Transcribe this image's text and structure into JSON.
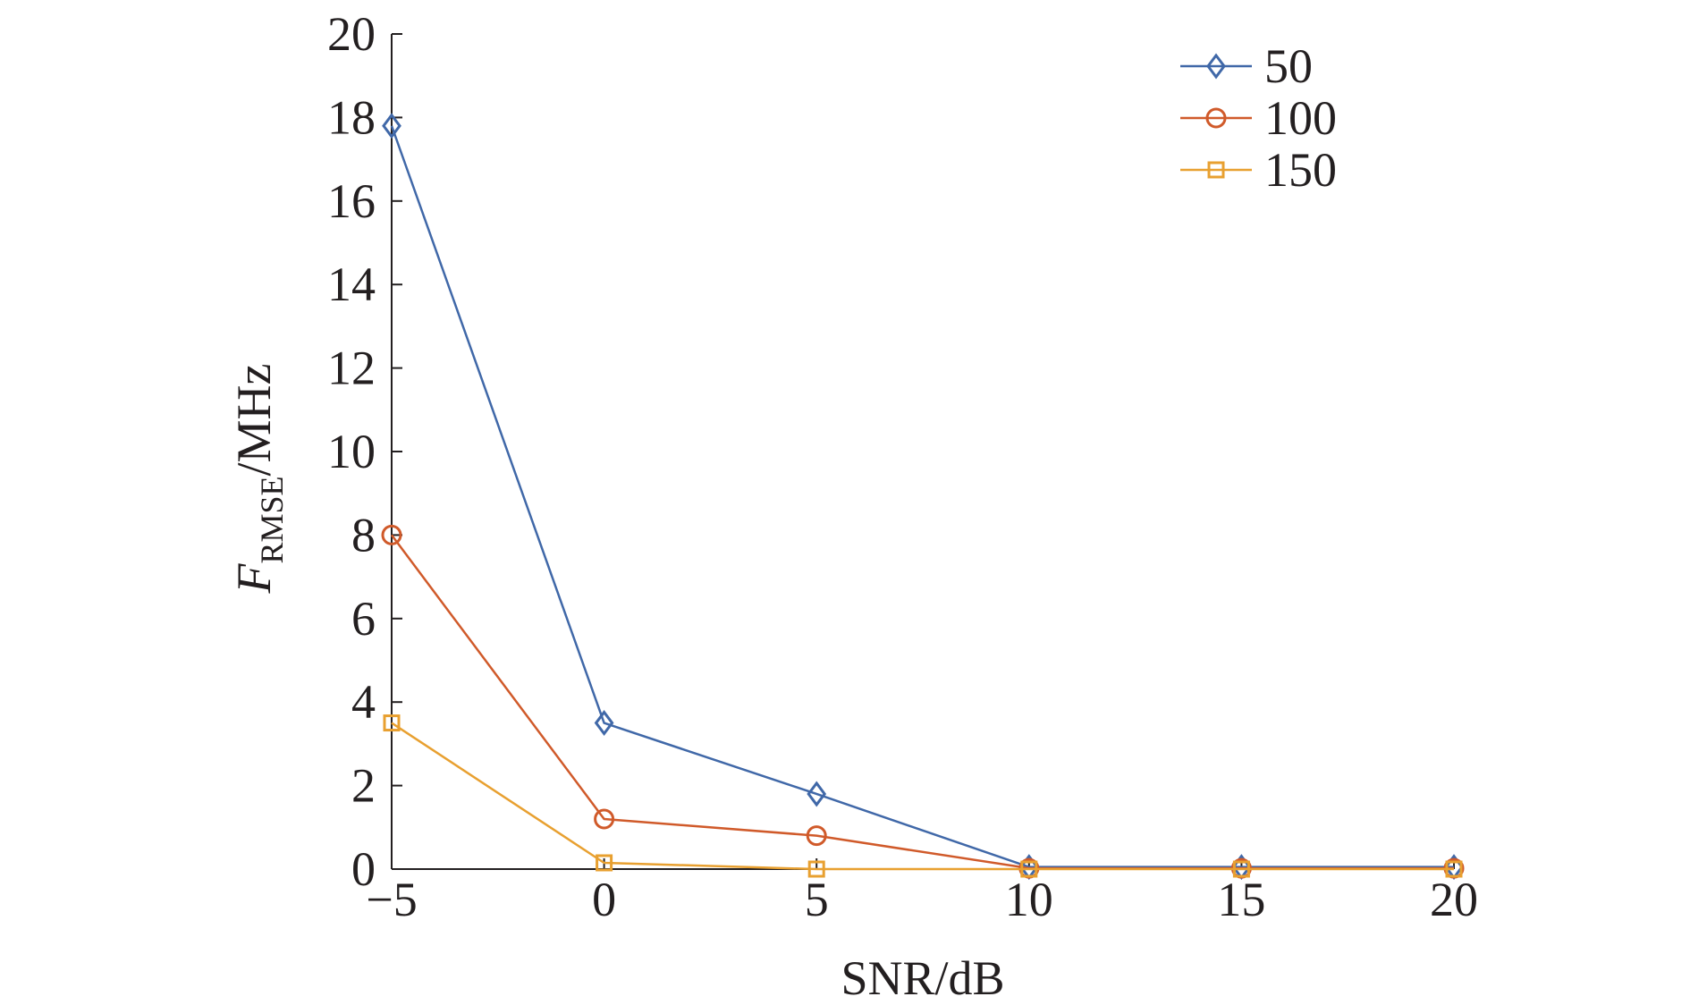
{
  "chart_data": {
    "type": "line",
    "xlabel": "SNR/dB",
    "ylabel": {
      "main": "F",
      "subscript": "RMSE",
      "unit": "/MHz"
    },
    "xlim": [
      -5,
      20
    ],
    "ylim": [
      0,
      20
    ],
    "x_ticks": [
      -5,
      0,
      5,
      10,
      15,
      20
    ],
    "x_tick_labels": [
      "−5",
      "0",
      "5",
      "10",
      "15",
      "20"
    ],
    "y_ticks": [
      0,
      2,
      4,
      6,
      8,
      10,
      12,
      14,
      16,
      18,
      20
    ],
    "y_tick_labels": [
      "0",
      "2",
      "4",
      "6",
      "8",
      "10",
      "12",
      "14",
      "16",
      "18",
      "20"
    ],
    "grid": false,
    "legend_position": "top-right",
    "series": [
      {
        "name": "50",
        "color": "#4068a8",
        "marker": "diamond",
        "x": [
          -5,
          0,
          5,
          10,
          15,
          20
        ],
        "y": [
          17.8,
          3.5,
          1.8,
          0.05,
          0.05,
          0.05
        ]
      },
      {
        "name": "100",
        "color": "#d05a2a",
        "marker": "circle",
        "x": [
          -5,
          0,
          5,
          10,
          15,
          20
        ],
        "y": [
          8.0,
          1.2,
          0.8,
          0.02,
          0.02,
          0.02
        ]
      },
      {
        "name": "150",
        "color": "#e8a030",
        "marker": "square",
        "x": [
          -5,
          0,
          5,
          10,
          15,
          20
        ],
        "y": [
          3.5,
          0.15,
          0.0,
          0.0,
          0.0,
          0.0
        ]
      }
    ]
  }
}
